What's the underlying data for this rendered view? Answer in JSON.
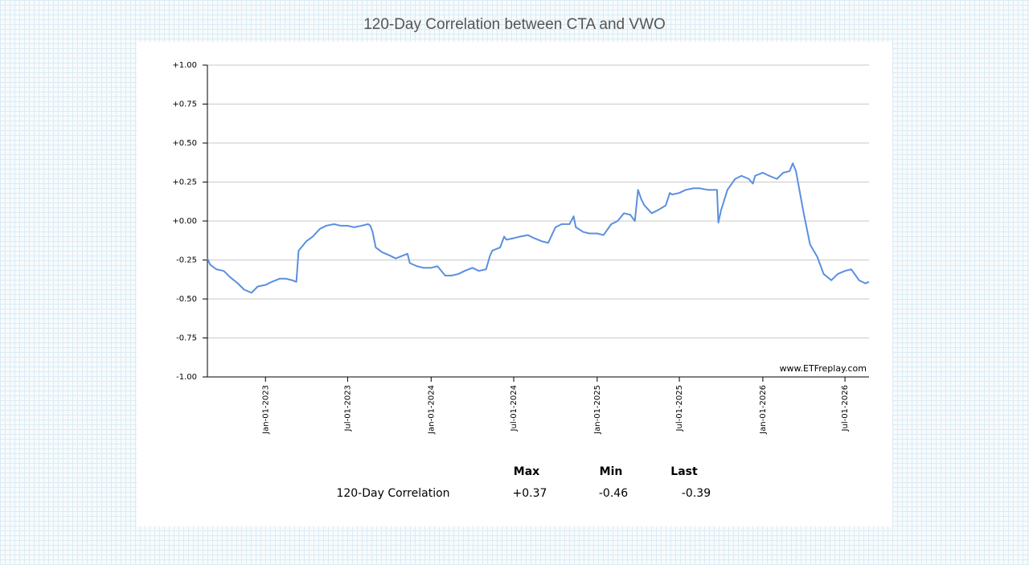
{
  "chart_data": {
    "type": "line",
    "title": "120-Day Correlation between CTA and VWO",
    "x": [
      "2022-08-26",
      "2022-09-01",
      "2022-09-15",
      "2022-10-01",
      "2022-10-15",
      "2022-11-01",
      "2022-11-15",
      "2022-12-01",
      "2022-12-15",
      "2023-01-01",
      "2023-01-15",
      "2023-02-01",
      "2023-02-15",
      "2023-03-01",
      "2023-03-10",
      "2023-03-15",
      "2023-04-01",
      "2023-04-15",
      "2023-05-01",
      "2023-05-15",
      "2023-06-01",
      "2023-06-15",
      "2023-07-01",
      "2023-07-15",
      "2023-08-01",
      "2023-08-15",
      "2023-08-20",
      "2023-08-25",
      "2023-09-01",
      "2023-09-15",
      "2023-10-01",
      "2023-10-15",
      "2023-11-01",
      "2023-11-10",
      "2023-11-15",
      "2023-12-01",
      "2023-12-15",
      "2024-01-01",
      "2024-01-15",
      "2024-02-01",
      "2024-02-15",
      "2024-03-01",
      "2024-03-15",
      "2024-04-01",
      "2024-04-15",
      "2024-05-01",
      "2024-05-10",
      "2024-05-15",
      "2024-06-01",
      "2024-06-10",
      "2024-06-15",
      "2024-07-01",
      "2024-07-15",
      "2024-08-01",
      "2024-08-15",
      "2024-09-01",
      "2024-09-15",
      "2024-10-01",
      "2024-10-15",
      "2024-11-01",
      "2024-11-10",
      "2024-11-15",
      "2024-12-01",
      "2024-12-15",
      "2025-01-01",
      "2025-01-15",
      "2025-02-01",
      "2025-02-15",
      "2025-03-01",
      "2025-03-15",
      "2025-03-25",
      "2025-04-01",
      "2025-04-08",
      "2025-04-15",
      "2025-05-01",
      "2025-05-15",
      "2025-06-01",
      "2025-06-10",
      "2025-06-15",
      "2025-07-01",
      "2025-07-15",
      "2025-08-01",
      "2025-08-15",
      "2025-09-01",
      "2025-09-15",
      "2025-09-22",
      "2025-09-25",
      "2025-10-01",
      "2025-10-15",
      "2025-11-01",
      "2025-11-15",
      "2025-12-01",
      "2025-12-10",
      "2025-12-15",
      "2026-01-01",
      "2026-01-15",
      "2026-02-01",
      "2026-02-15",
      "2026-03-01",
      "2026-03-08",
      "2026-03-15",
      "2026-04-01",
      "2026-04-15",
      "2026-05-01",
      "2026-05-15",
      "2026-06-01",
      "2026-06-15",
      "2026-07-01",
      "2026-07-15",
      "2026-08-01",
      "2026-08-15",
      "2026-08-23"
    ],
    "values": [
      -0.24,
      -0.28,
      -0.31,
      -0.32,
      -0.36,
      -0.4,
      -0.44,
      -0.46,
      -0.42,
      -0.41,
      -0.39,
      -0.37,
      -0.37,
      -0.38,
      -0.39,
      -0.19,
      -0.13,
      -0.1,
      -0.05,
      -0.03,
      -0.02,
      -0.03,
      -0.03,
      -0.04,
      -0.03,
      -0.02,
      -0.03,
      -0.07,
      -0.17,
      -0.2,
      -0.22,
      -0.24,
      -0.22,
      -0.21,
      -0.27,
      -0.29,
      -0.3,
      -0.3,
      -0.29,
      -0.35,
      -0.35,
      -0.34,
      -0.32,
      -0.3,
      -0.32,
      -0.31,
      -0.22,
      -0.19,
      -0.17,
      -0.1,
      -0.12,
      -0.11,
      -0.1,
      -0.09,
      -0.11,
      -0.13,
      -0.14,
      -0.04,
      -0.02,
      -0.02,
      0.03,
      -0.04,
      -0.07,
      -0.08,
      -0.08,
      -0.09,
      -0.02,
      0.0,
      0.05,
      0.04,
      0.0,
      0.2,
      0.14,
      0.1,
      0.05,
      0.07,
      0.1,
      0.18,
      0.17,
      0.18,
      0.2,
      0.21,
      0.21,
      0.2,
      0.2,
      0.2,
      -0.01,
      0.07,
      0.2,
      0.27,
      0.29,
      0.27,
      0.24,
      0.29,
      0.31,
      0.29,
      0.27,
      0.31,
      0.32,
      0.37,
      0.32,
      0.05,
      -0.15,
      -0.23,
      -0.34,
      -0.38,
      -0.34,
      -0.32,
      -0.31,
      -0.38,
      -0.4,
      -0.39
    ],
    "color": "#5b8fe0",
    "xlim": [
      "2022-08-26",
      "2026-08-23"
    ],
    "xticks": [
      {
        "value": "2023-01-01",
        "label": "Jan-01-2023"
      },
      {
        "value": "2023-07-01",
        "label": "Jul-01-2023"
      },
      {
        "value": "2024-01-01",
        "label": "Jan-01-2024"
      },
      {
        "value": "2024-07-01",
        "label": "Jul-01-2024"
      },
      {
        "value": "2025-01-01",
        "label": "Jan-01-2025"
      },
      {
        "value": "2025-07-01",
        "label": "Jul-01-2025"
      },
      {
        "value": "2026-01-01",
        "label": "Jan-01-2026"
      },
      {
        "value": "2026-07-01",
        "label": "Jul-01-2026"
      }
    ],
    "ylim": [
      -1,
      1
    ],
    "yticks": [
      {
        "value": -1,
        "label": "-1.00"
      },
      {
        "value": -0.75,
        "label": "-0.75"
      },
      {
        "value": -0.5,
        "label": "-0.50"
      },
      {
        "value": -0.25,
        "label": "-0.25"
      },
      {
        "value": 0,
        "label": "+0.00"
      },
      {
        "value": 0.25,
        "label": "+0.25"
      },
      {
        "value": 0.5,
        "label": "+0.50"
      },
      {
        "value": 0.75,
        "label": "+0.75"
      },
      {
        "value": 1,
        "label": "+1.00"
      }
    ],
    "grid": true,
    "watermark": "www.ETFreplay.com"
  },
  "stats": {
    "headers": [
      "Max",
      "Min",
      "Last"
    ],
    "rows": [
      [
        "120-Day Correlation",
        "+0.37",
        "-0.46",
        "-0.39"
      ]
    ]
  }
}
